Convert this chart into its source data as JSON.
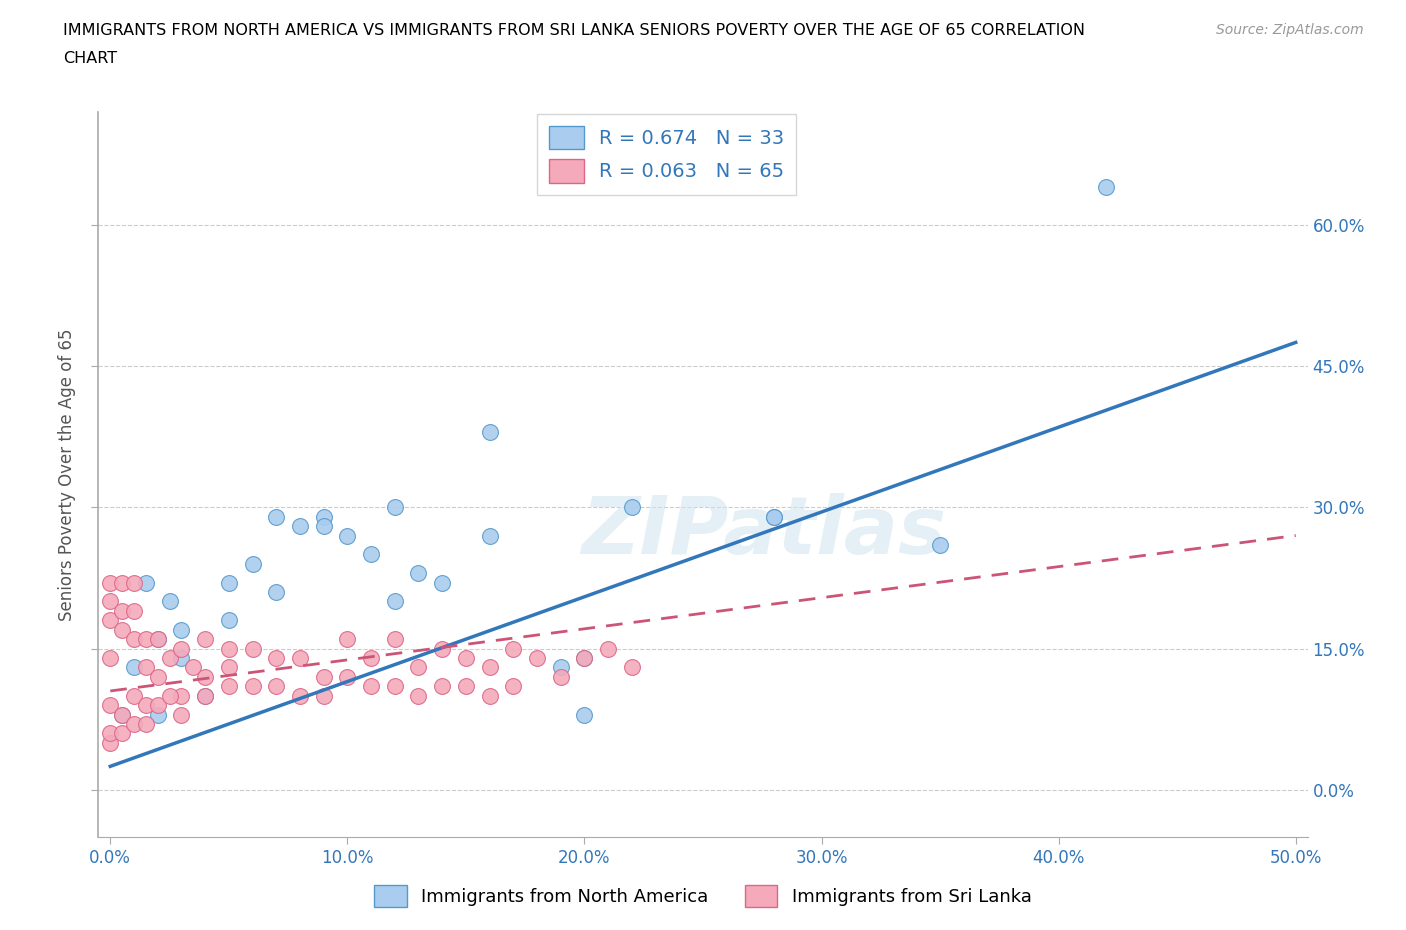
{
  "title_line1": "IMMIGRANTS FROM NORTH AMERICA VS IMMIGRANTS FROM SRI LANKA SENIORS POVERTY OVER THE AGE OF 65 CORRELATION",
  "title_line2": "CHART",
  "source": "Source: ZipAtlas.com",
  "ylabel_label": "Seniors Poverty Over the Age of 65",
  "xlim": [
    -0.005,
    0.505
  ],
  "ylim": [
    -0.05,
    0.72
  ],
  "ytick_positions": [
    0.0,
    0.15,
    0.3,
    0.45,
    0.6
  ],
  "ytick_labels": [
    "0.0%",
    "15.0%",
    "30.0%",
    "45.0%",
    "60.0%"
  ],
  "xtick_positions": [
    0.0,
    0.1,
    0.2,
    0.3,
    0.4,
    0.5
  ],
  "xtick_labels": [
    "0.0%",
    "10.0%",
    "20.0%",
    "30.0%",
    "40.0%",
    "50.0%"
  ],
  "blue_R": 0.674,
  "blue_N": 33,
  "pink_R": 0.063,
  "pink_N": 65,
  "blue_color": "#aaccee",
  "pink_color": "#f4aabb",
  "blue_edge_color": "#5599cc",
  "pink_edge_color": "#dd6688",
  "blue_line_color": "#3377bb",
  "pink_line_color": "#cc5577",
  "watermark": "ZIPatlas",
  "blue_scatter_x": [
    0.005,
    0.01,
    0.015,
    0.02,
    0.025,
    0.03,
    0.04,
    0.05,
    0.06,
    0.07,
    0.08,
    0.09,
    0.1,
    0.11,
    0.12,
    0.13,
    0.14,
    0.16,
    0.19,
    0.2,
    0.22,
    0.28,
    0.35,
    0.42,
    0.02,
    0.03,
    0.05,
    0.07,
    0.09,
    0.12,
    0.16,
    0.2,
    0.28
  ],
  "blue_scatter_y": [
    0.08,
    0.13,
    0.22,
    0.08,
    0.2,
    0.17,
    0.1,
    0.18,
    0.24,
    0.29,
    0.28,
    0.29,
    0.27,
    0.25,
    0.2,
    0.23,
    0.22,
    0.38,
    0.13,
    0.08,
    0.3,
    0.29,
    0.26,
    0.64,
    0.16,
    0.14,
    0.22,
    0.21,
    0.28,
    0.3,
    0.27,
    0.14,
    0.29
  ],
  "pink_scatter_x": [
    0.0,
    0.0,
    0.0,
    0.0,
    0.0,
    0.005,
    0.005,
    0.005,
    0.005,
    0.01,
    0.01,
    0.01,
    0.01,
    0.015,
    0.015,
    0.015,
    0.02,
    0.02,
    0.025,
    0.03,
    0.03,
    0.035,
    0.04,
    0.04,
    0.05,
    0.05,
    0.06,
    0.07,
    0.08,
    0.09,
    0.1,
    0.11,
    0.12,
    0.13,
    0.14,
    0.15,
    0.16,
    0.17,
    0.18,
    0.19,
    0.2,
    0.21,
    0.22,
    0.0,
    0.0,
    0.005,
    0.01,
    0.015,
    0.02,
    0.025,
    0.03,
    0.04,
    0.05,
    0.06,
    0.07,
    0.08,
    0.09,
    0.1,
    0.11,
    0.12,
    0.13,
    0.14,
    0.15,
    0.16,
    0.17
  ],
  "pink_scatter_y": [
    0.22,
    0.2,
    0.18,
    0.14,
    0.09,
    0.22,
    0.19,
    0.17,
    0.08,
    0.22,
    0.19,
    0.16,
    0.1,
    0.16,
    0.13,
    0.09,
    0.16,
    0.12,
    0.14,
    0.15,
    0.1,
    0.13,
    0.16,
    0.12,
    0.15,
    0.13,
    0.15,
    0.14,
    0.14,
    0.12,
    0.16,
    0.14,
    0.16,
    0.13,
    0.15,
    0.14,
    0.13,
    0.15,
    0.14,
    0.12,
    0.14,
    0.15,
    0.13,
    0.05,
    0.06,
    0.06,
    0.07,
    0.07,
    0.09,
    0.1,
    0.08,
    0.1,
    0.11,
    0.11,
    0.11,
    0.1,
    0.1,
    0.12,
    0.11,
    0.11,
    0.1,
    0.11,
    0.11,
    0.1,
    0.11
  ],
  "blue_line_x": [
    0.0,
    0.5
  ],
  "blue_line_y_start": 0.025,
  "blue_line_y_end": 0.475,
  "pink_line_x": [
    0.0,
    0.5
  ],
  "pink_line_y_start": 0.105,
  "pink_line_y_end": 0.27
}
